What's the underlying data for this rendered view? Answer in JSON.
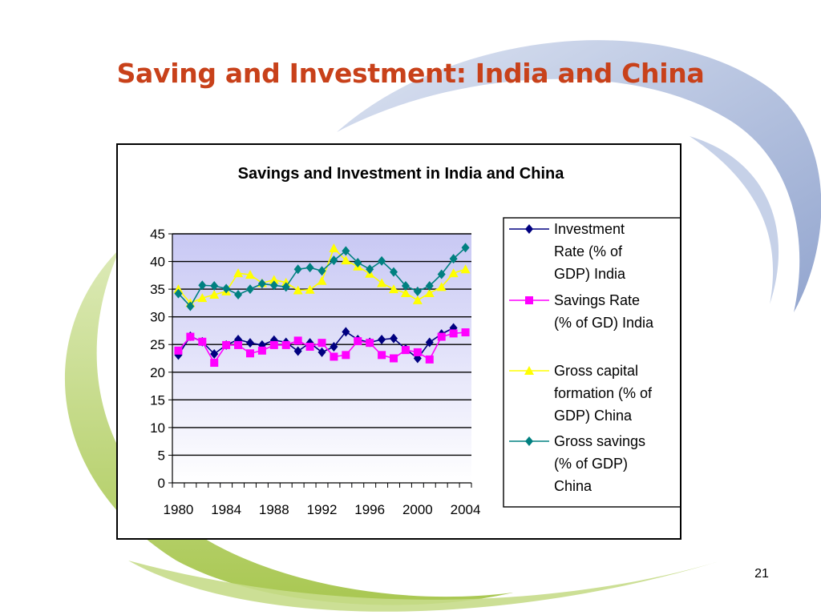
{
  "slide": {
    "title": "Saving and Investment: India and China",
    "page_number": "21"
  },
  "colors": {
    "title": "#c8411a",
    "plot_bg_top": "#c8c8f4",
    "plot_bg_bottom": "#ffffff",
    "swoosh_blue": "#8fa3cf",
    "swoosh_green": "#a9c84e"
  },
  "chart_data": {
    "type": "line",
    "title": "Savings and Investment in India and China",
    "xlabel": "",
    "ylabel": "",
    "ylim": [
      0,
      45
    ],
    "yticks": [
      "0",
      "5",
      "10",
      "15",
      "20",
      "25",
      "30",
      "35",
      "40",
      "45"
    ],
    "x": [
      1980,
      1981,
      1982,
      1983,
      1984,
      1985,
      1986,
      1987,
      1988,
      1989,
      1990,
      1991,
      1992,
      1993,
      1994,
      1995,
      1996,
      1997,
      1998,
      1999,
      2000,
      2001,
      2002,
      2003,
      2004
    ],
    "xtick_labels": [
      "1980",
      "1984",
      "1988",
      "1992",
      "1996",
      "2000",
      "2004"
    ],
    "grid": true,
    "legend_position": "right",
    "series": [
      {
        "name": "Investment Rate (% of GDP) India",
        "legend_lines": [
          "Investment",
          "Rate (% of",
          "GDP) India"
        ],
        "color": "#000080",
        "marker": "diamond",
        "values": [
          23.1,
          26.5,
          25.5,
          23.3,
          24.9,
          25.9,
          25.3,
          24.9,
          25.8,
          25.4,
          23.8,
          25.3,
          23.6,
          24.6,
          27.3,
          25.9,
          25.4,
          25.9,
          26.1,
          24.2,
          22.5,
          25.4,
          26.9,
          28.0,
          null
        ]
      },
      {
        "name": "Savings Rate (% of GD) India",
        "legend_lines": [
          "Savings Rate",
          "(% of GD) India"
        ],
        "color": "#ff00ff",
        "marker": "square",
        "values": [
          23.9,
          26.4,
          25.5,
          21.7,
          24.9,
          24.9,
          23.4,
          23.9,
          24.9,
          24.9,
          25.7,
          24.6,
          25.3,
          22.8,
          23.1,
          25.6,
          25.3,
          23.1,
          22.5,
          24.0,
          23.6,
          22.3,
          26.4,
          27.0,
          27.2
        ]
      },
      {
        "name": "Gross capital formation (% of GDP) China",
        "legend_lines": [
          "Gross capital",
          "formation (% of",
          "GDP) China"
        ],
        "color": "#ffff00",
        "marker": "triangle",
        "values": [
          35.0,
          32.5,
          33.4,
          34.0,
          34.6,
          37.9,
          37.6,
          36.1,
          36.7,
          36.2,
          34.8,
          34.9,
          36.5,
          42.4,
          40.2,
          39.1,
          37.8,
          36.1,
          35.0,
          34.3,
          33.0,
          34.3,
          35.4,
          37.9,
          38.6
        ]
      },
      {
        "name": "Gross savings (% of GDP) China",
        "legend_lines": [
          "Gross savings",
          "(% of GDP)",
          "China"
        ],
        "color": "#008080",
        "marker": "diamond",
        "values": [
          34.2,
          31.9,
          35.7,
          35.6,
          35.1,
          34.0,
          35.0,
          36.0,
          35.7,
          35.4,
          38.6,
          38.9,
          38.3,
          40.2,
          41.9,
          39.8,
          38.6,
          40.1,
          38.1,
          35.6,
          34.6,
          35.6,
          37.7,
          40.5,
          42.5
        ]
      }
    ]
  }
}
